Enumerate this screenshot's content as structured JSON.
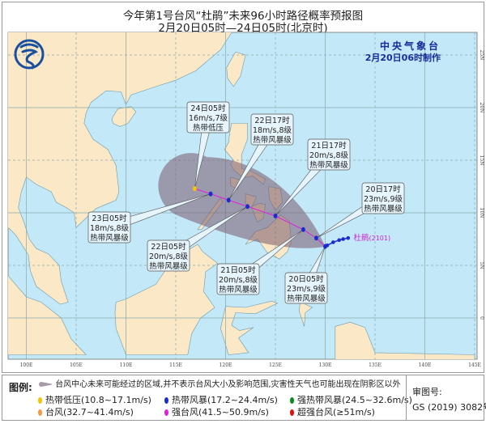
{
  "title": {
    "line1": "今年第1号台风“杜鹃”未来96小时路径概率预报图",
    "line2": "2月20日05时—24日05时(北京时)"
  },
  "agency": {
    "name": "中央气象台",
    "made_time": "2月20日06时制作"
  },
  "logo": {
    "name": "China Meteorological Administration logo"
  },
  "typhoon": {
    "name_label": "杜鹃",
    "number_label": "(2101)",
    "past_track": [
      [
        130.2,
        6.9
      ],
      [
        130.8,
        7.2
      ],
      [
        131.4,
        7.4
      ],
      [
        131.8,
        7.5
      ],
      [
        132.3,
        7.6
      ]
    ],
    "forecast": [
      {
        "time": "20日05时",
        "wind": "23m/s,9级",
        "level": "热带风暴级",
        "lon": 130.0,
        "lat": 6.8,
        "color": "#1a2bd0"
      },
      {
        "time": "20日17时",
        "wind": "23m/s,9级",
        "level": "热带风暴级",
        "lon": 129.1,
        "lat": 7.6,
        "color": "#1a2bd0"
      },
      {
        "time": "21日05时",
        "wind": "20m/s,8级",
        "level": "热带风暴级",
        "lon": 127.8,
        "lat": 8.4,
        "color": "#1a2bd0"
      },
      {
        "time": "21日17时",
        "wind": "20m/s,8级",
        "level": "热带风暴级",
        "lon": 125.0,
        "lat": 9.7,
        "color": "#1a2bd0"
      },
      {
        "time": "22日05时",
        "wind": "20m/s,8级",
        "level": "热带风暴级",
        "lon": 122.2,
        "lat": 10.6,
        "color": "#1a2bd0"
      },
      {
        "time": "22日17时",
        "wind": "18m/s,8级",
        "level": "热带风暴级",
        "lon": 120.3,
        "lat": 11.2,
        "color": "#1a2bd0"
      },
      {
        "time": "23日05时",
        "wind": "18m/s,8级",
        "level": "热带风暴级",
        "lon": 118.5,
        "lat": 11.8,
        "color": "#1a2bd0"
      },
      {
        "time": "24日05时",
        "wind": "16m/s,7级",
        "level": "热带低压",
        "lon": 116.9,
        "lat": 12.3,
        "color": "#f5c400"
      }
    ]
  },
  "axes": {
    "lon_labels": [
      "100E",
      "105E",
      "110E",
      "115E",
      "120E",
      "125E",
      "130E",
      "135E",
      "140E",
      "145E"
    ],
    "lat_labels": [
      "25N",
      "20N",
      "15N",
      "10N",
      "5N",
      "0"
    ]
  },
  "colors": {
    "ocean": "#c3e9f9",
    "land": "#fbe8c6",
    "cone": "#7a5a6e",
    "track": "#e020e0"
  },
  "legend": {
    "heading": "图例:",
    "cone_text": "台风中心未来可能经过的区域,并不表示台风大小及影响范围,灾害性天气也可能出现在阴影区以外",
    "items": [
      {
        "label": "热带低压(10.8~17.1m/s)",
        "color": "#f5c400"
      },
      {
        "label": "热带风暴(17.2~24.4m/s)",
        "color": "#1a2bd0"
      },
      {
        "label": "强热带风暴(24.5~32.6m/s)",
        "color": "#0a8a20"
      },
      {
        "label": "台风(32.7~41.4m/s)",
        "color": "#f59a40"
      },
      {
        "label": "强台风(41.5~50.9m/s)",
        "color": "#e020e0"
      },
      {
        "label": "超强台风(≥51m/s)",
        "color": "#e01010"
      }
    ],
    "review_label": "审图号:",
    "review_number": "GS (2019) 3082号"
  }
}
